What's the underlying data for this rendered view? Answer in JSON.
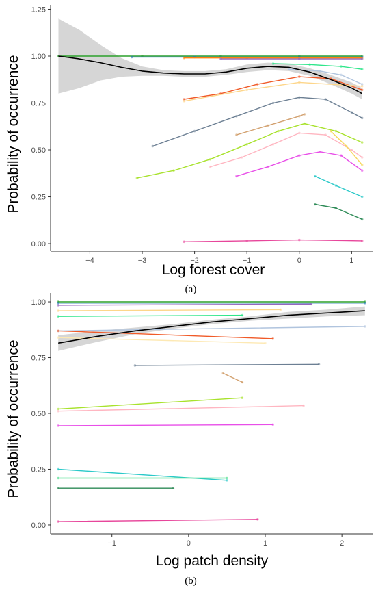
{
  "chart_data": [
    {
      "type": "line",
      "panel_label": "(a)",
      "xlabel": "Log forest cover",
      "ylabel": "Probability of occurrence",
      "xlim": [
        -4.75,
        1.4
      ],
      "ylim": [
        -0.04,
        1.27
      ],
      "xticks": [
        -4,
        -3,
        -2,
        -1,
        0,
        1
      ],
      "yticks": [
        0.0,
        0.25,
        0.5,
        0.75,
        1.0,
        1.25
      ],
      "ytick_labels": [
        "0.00",
        "0.25",
        "0.50",
        "0.75",
        "1.00",
        "1.25"
      ],
      "grid": false,
      "series": [
        {
          "color": "#2ca02c",
          "x": [
            -4.6,
            -3,
            -1.5,
            0,
            1.2
          ],
          "y": [
            1.0,
            1.0,
            1.0,
            1.0,
            1.0
          ]
        },
        {
          "color": "#1f77b4",
          "x": [
            -3.2,
            -2,
            0,
            1.2
          ],
          "y": [
            0.995,
            0.995,
            0.995,
            0.995
          ]
        },
        {
          "color": "#ff7f0e",
          "x": [
            -2.2,
            -1,
            0,
            1.2
          ],
          "y": [
            0.99,
            0.99,
            0.99,
            0.99
          ]
        },
        {
          "color": "#9467bd",
          "x": [
            -1.5,
            0,
            1.2
          ],
          "y": [
            0.985,
            0.985,
            0.985
          ]
        },
        {
          "color": "#2ee68a",
          "x": [
            -0.5,
            0.2,
            0.8,
            1.2
          ],
          "y": [
            0.96,
            0.955,
            0.945,
            0.93
          ]
        },
        {
          "color": "#b0c4de",
          "x": [
            -0.2,
            0.4,
            0.8,
            1.2
          ],
          "y": [
            0.93,
            0.92,
            0.9,
            0.85
          ]
        },
        {
          "color": "#f05a28",
          "x": [
            -2.2,
            -1.5,
            -0.8,
            0,
            0.6,
            1.2
          ],
          "y": [
            0.77,
            0.8,
            0.85,
            0.89,
            0.88,
            0.82
          ]
        },
        {
          "color": "#fdd68a",
          "x": [
            -2.2,
            -1,
            0,
            1.2
          ],
          "y": [
            0.76,
            0.82,
            0.86,
            0.84
          ]
        },
        {
          "color": "#6c7f93",
          "x": [
            -2.8,
            -2,
            -1.2,
            -0.5,
            0,
            0.5,
            1.0,
            1.2
          ],
          "y": [
            0.52,
            0.6,
            0.68,
            0.75,
            0.78,
            0.77,
            0.7,
            0.67
          ]
        },
        {
          "color": "#d2a06e",
          "x": [
            -1.2,
            -0.6,
            0,
            0.1
          ],
          "y": [
            0.58,
            0.63,
            0.68,
            0.69
          ]
        },
        {
          "color": "#a8e22c",
          "x": [
            -3.1,
            -2.4,
            -1.7,
            -1.0,
            -0.4,
            0.1,
            0.7,
            1.2
          ],
          "y": [
            0.35,
            0.39,
            0.45,
            0.53,
            0.6,
            0.64,
            0.6,
            0.54
          ]
        },
        {
          "color": "#ffb6c1",
          "x": [
            -1.7,
            -1.1,
            -0.5,
            0,
            0.5,
            1.0,
            1.2
          ],
          "y": [
            0.41,
            0.46,
            0.53,
            0.59,
            0.58,
            0.5,
            0.46
          ]
        },
        {
          "color": "#e84fe8",
          "x": [
            -1.2,
            -0.6,
            0,
            0.4,
            0.8,
            1.2
          ],
          "y": [
            0.36,
            0.41,
            0.47,
            0.49,
            0.47,
            0.39
          ]
        },
        {
          "color": "#f5d75a",
          "x": [
            0.6,
            0.9,
            1.2
          ],
          "y": [
            0.6,
            0.52,
            0.42
          ]
        },
        {
          "color": "#2bc9c9",
          "x": [
            0.3,
            0.7,
            1.2
          ],
          "y": [
            0.36,
            0.31,
            0.25
          ]
        },
        {
          "color": "#2e8b57",
          "x": [
            0.3,
            0.7,
            1.2
          ],
          "y": [
            0.21,
            0.19,
            0.13
          ]
        },
        {
          "color": "#e7469b",
          "x": [
            -2.2,
            -1,
            0,
            1.2
          ],
          "y": [
            0.01,
            0.015,
            0.02,
            0.015
          ]
        }
      ],
      "trend": {
        "color": "#000000",
        "x": [
          -4.6,
          -4.2,
          -3.8,
          -3.4,
          -3.0,
          -2.6,
          -2.2,
          -1.8,
          -1.4,
          -1.0,
          -0.6,
          -0.2,
          0.2,
          0.6,
          1.0,
          1.2
        ],
        "y": [
          1.0,
          0.985,
          0.965,
          0.94,
          0.92,
          0.91,
          0.905,
          0.905,
          0.915,
          0.935,
          0.945,
          0.94,
          0.915,
          0.875,
          0.83,
          0.8
        ],
        "ci_lower": [
          0.8,
          0.83,
          0.87,
          0.89,
          0.895,
          0.895,
          0.89,
          0.89,
          0.9,
          0.915,
          0.925,
          0.92,
          0.895,
          0.85,
          0.8,
          0.77
        ],
        "ci_upper": [
          1.2,
          1.14,
          1.06,
          0.99,
          0.945,
          0.925,
          0.92,
          0.92,
          0.93,
          0.955,
          0.965,
          0.96,
          0.935,
          0.9,
          0.86,
          0.83
        ]
      }
    },
    {
      "type": "line",
      "panel_label": "(b)",
      "xlabel": "Log patch density",
      "ylabel": "Probability of occurrence",
      "xlim": [
        -1.8,
        2.4
      ],
      "ylim": [
        -0.04,
        1.04
      ],
      "xticks": [
        -1,
        0,
        1,
        2
      ],
      "yticks": [
        0.0,
        0.25,
        0.5,
        0.75,
        1.0
      ],
      "ytick_labels": [
        "0.00",
        "0.25",
        "0.50",
        "0.75",
        "1.00"
      ],
      "grid": false,
      "series": [
        {
          "color": "#2ca02c",
          "x": [
            -1.7,
            2.3
          ],
          "y": [
            1.0,
            1.0
          ]
        },
        {
          "color": "#1f77b4",
          "x": [
            -1.7,
            2.3
          ],
          "y": [
            0.995,
            0.995
          ]
        },
        {
          "color": "#9467bd",
          "x": [
            -1.7,
            1.6
          ],
          "y": [
            0.985,
            0.99
          ]
        },
        {
          "color": "#fdd68a",
          "x": [
            -1.7,
            1.2
          ],
          "y": [
            0.96,
            0.965
          ]
        },
        {
          "color": "#2ee68a",
          "x": [
            -1.7,
            0.7
          ],
          "y": [
            0.935,
            0.94
          ]
        },
        {
          "color": "#b0c4de",
          "x": [
            -1.7,
            2.3
          ],
          "y": [
            0.87,
            0.89
          ]
        },
        {
          "color": "#f05a28",
          "x": [
            -1.7,
            1.1
          ],
          "y": [
            0.87,
            0.835
          ]
        },
        {
          "color": "#fde9b4",
          "x": [
            -1.7,
            1.0
          ],
          "y": [
            0.84,
            0.815
          ]
        },
        {
          "color": "#6c7f93",
          "x": [
            -0.7,
            1.7
          ],
          "y": [
            0.715,
            0.72
          ]
        },
        {
          "color": "#d2a06e",
          "x": [
            0.45,
            0.7
          ],
          "y": [
            0.68,
            0.64
          ]
        },
        {
          "color": "#a8e22c",
          "x": [
            -1.7,
            0.7
          ],
          "y": [
            0.52,
            0.57
          ]
        },
        {
          "color": "#ffb6c1",
          "x": [
            -1.7,
            1.5
          ],
          "y": [
            0.51,
            0.535
          ]
        },
        {
          "color": "#e84fe8",
          "x": [
            -1.7,
            1.1
          ],
          "y": [
            0.445,
            0.45
          ]
        },
        {
          "color": "#2bc9c9",
          "x": [
            -1.7,
            0.5
          ],
          "y": [
            0.25,
            0.2
          ]
        },
        {
          "color": "#3ddc84",
          "x": [
            -1.7,
            0.5
          ],
          "y": [
            0.21,
            0.21
          ]
        },
        {
          "color": "#2e8b57",
          "x": [
            -1.7,
            -0.2
          ],
          "y": [
            0.165,
            0.165
          ]
        },
        {
          "color": "#e7469b",
          "x": [
            -1.7,
            0.9
          ],
          "y": [
            0.015,
            0.025
          ]
        }
      ],
      "trend": {
        "color": "#000000",
        "x": [
          -1.7,
          -1.2,
          -0.7,
          -0.2,
          0.3,
          0.8,
          1.3,
          1.8,
          2.3
        ],
        "y": [
          0.815,
          0.845,
          0.87,
          0.89,
          0.91,
          0.925,
          0.94,
          0.95,
          0.96
        ],
        "ci_lower": [
          0.78,
          0.82,
          0.855,
          0.88,
          0.9,
          0.915,
          0.925,
          0.935,
          0.94
        ],
        "ci_upper": [
          0.85,
          0.87,
          0.885,
          0.9,
          0.92,
          0.935,
          0.955,
          0.965,
          0.98
        ]
      }
    }
  ]
}
